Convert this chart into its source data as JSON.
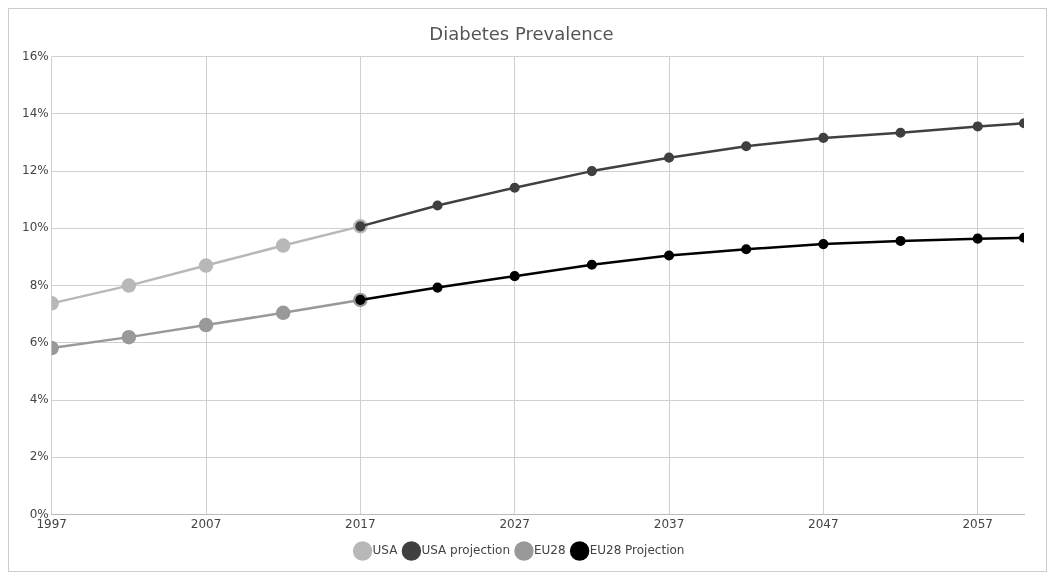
{
  "chart_data": {
    "type": "line",
    "title": "Diabetes Prevalence",
    "series": [
      {
        "name": "USA",
        "color": "#b8b8b8",
        "x": [
          1997,
          2002,
          2007,
          2012,
          2017
        ],
        "values": [
          7.38,
          8.0,
          8.7,
          9.4,
          10.07
        ]
      },
      {
        "name": "USA projection",
        "color": "#404040",
        "x": [
          2017,
          2022,
          2027,
          2032,
          2037,
          2042,
          2047,
          2052,
          2057,
          2060
        ],
        "values": [
          10.07,
          10.8,
          11.42,
          12.0,
          12.47,
          12.87,
          13.16,
          13.34,
          13.56,
          13.67
        ]
      },
      {
        "name": "EU28",
        "color": "#999999",
        "x": [
          1997,
          2002,
          2007,
          2012,
          2017
        ],
        "values": [
          5.82,
          6.2,
          6.62,
          7.05,
          7.5
        ]
      },
      {
        "name": "EU28 Projection",
        "color": "#000000",
        "x": [
          2017,
          2022,
          2027,
          2032,
          2037,
          2042,
          2047,
          2052,
          2057,
          2060
        ],
        "values": [
          7.5,
          7.93,
          8.33,
          8.73,
          9.05,
          9.27,
          9.45,
          9.56,
          9.64,
          9.67
        ]
      }
    ],
    "xlim": [
      1997,
      2060
    ],
    "xticks": [
      1997,
      2007,
      2017,
      2027,
      2037,
      2047,
      2057
    ],
    "ylim": [
      0,
      16
    ],
    "yticks": [
      {
        "value": 0,
        "label": "0%"
      },
      {
        "value": 2,
        "label": "2%"
      },
      {
        "value": 4,
        "label": "4%"
      },
      {
        "value": 6,
        "label": "6%"
      },
      {
        "value": 8,
        "label": "8%"
      },
      {
        "value": 10,
        "label": "10%"
      },
      {
        "value": 12,
        "label": "12%"
      },
      {
        "value": 14,
        "label": "14%"
      },
      {
        "value": 16,
        "label": "16%"
      }
    ],
    "grid": true,
    "legend": "bottom",
    "marker": "circle",
    "line_style": "solid"
  }
}
